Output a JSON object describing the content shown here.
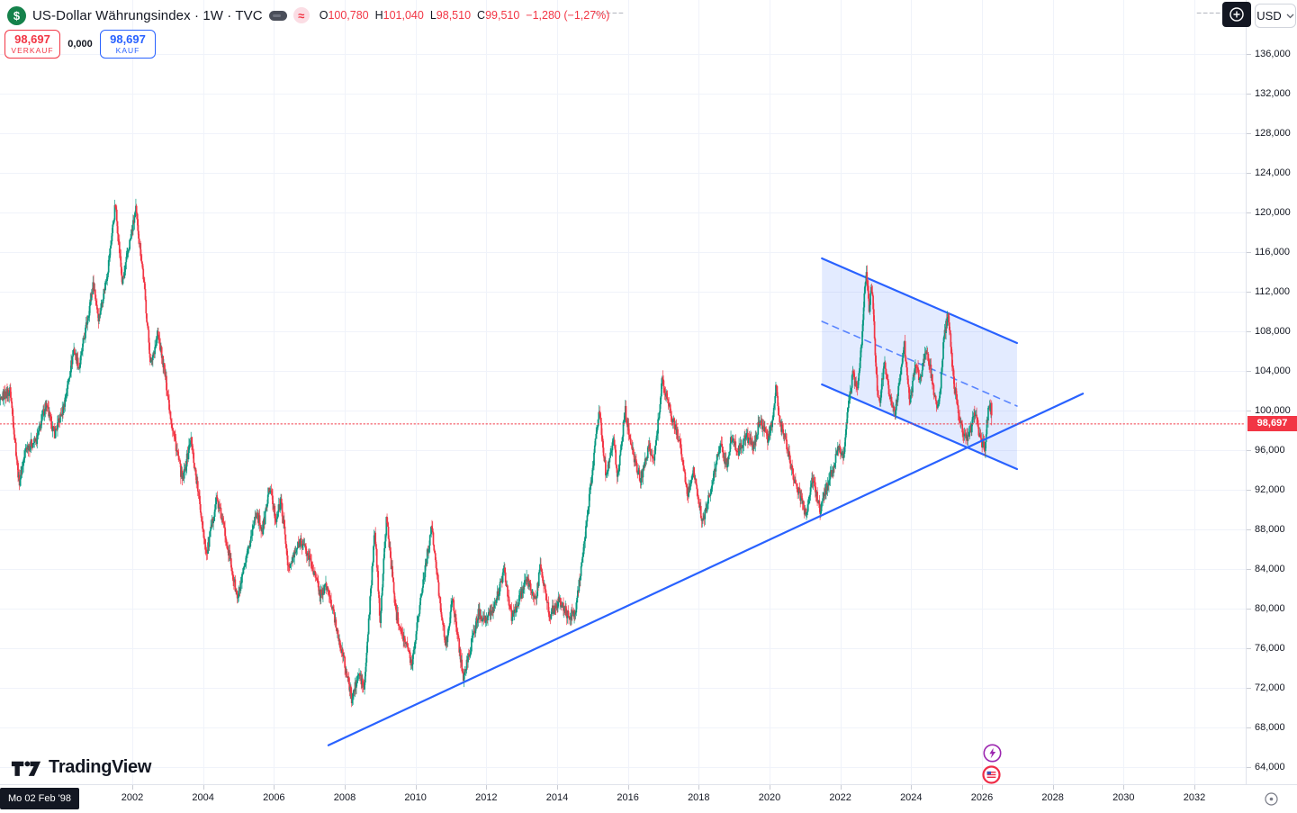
{
  "header": {
    "logo_glyph": "$",
    "symbol_title": "US-Dollar Währungsindex · 1W · TVC",
    "approx_badge": "≈",
    "ohlc": {
      "o_label": "O",
      "o": "100,780",
      "h_label": "H",
      "h": "101,040",
      "l_label": "L",
      "l": "98,510",
      "c_label": "C",
      "c": "99,510",
      "change": "−1,280 (−1,27%)"
    },
    "sell": {
      "price": "98,697",
      "label": "VERKAUF"
    },
    "spread": "0,000",
    "buy": {
      "price": "98,697",
      "label": "KAUF"
    },
    "currency": "USD"
  },
  "footer": {
    "logo_text": "TradingView",
    "date_chip": "Mo 02 Feb '98"
  },
  "chart_data": {
    "type": "candlestick",
    "title": "US-Dollar Währungsindex",
    "timeframe": "1W",
    "exchange": "TVC",
    "last_candle": {
      "open": 100.78,
      "high": 101.04,
      "low": 98.51,
      "close": 99.51,
      "change": -1.28,
      "change_pct": -1.27
    },
    "current_price": 98.697,
    "last_price_label": "98,697",
    "colors": {
      "up": "#089981",
      "down": "#f23645",
      "trend": "#2962ff",
      "channel_fill": "rgba(41,98,255,0.13)",
      "grid": "#f0f3fa",
      "price_line": "#f23645"
    },
    "y_axis": {
      "min": 62.3,
      "max": 141.4,
      "ticks": [
        {
          "value": 136,
          "label": "136,000"
        },
        {
          "value": 132,
          "label": "132,000"
        },
        {
          "value": 128,
          "label": "128,000"
        },
        {
          "value": 124,
          "label": "124,000"
        },
        {
          "value": 120,
          "label": "120,000"
        },
        {
          "value": 116,
          "label": "116,000"
        },
        {
          "value": 112,
          "label": "112,000"
        },
        {
          "value": 108,
          "label": "108,000"
        },
        {
          "value": 104,
          "label": "104,000"
        },
        {
          "value": 100,
          "label": "100,000"
        },
        {
          "value": 96,
          "label": "96,000"
        },
        {
          "value": 92,
          "label": "92,000"
        },
        {
          "value": 88,
          "label": "88,000"
        },
        {
          "value": 84,
          "label": "84,000"
        },
        {
          "value": 80,
          "label": "80,000"
        },
        {
          "value": 76,
          "label": "76,000"
        },
        {
          "value": 72,
          "label": "72,000"
        },
        {
          "value": 68,
          "label": "68,000"
        },
        {
          "value": 64,
          "label": "64,000"
        }
      ]
    },
    "x_axis": {
      "start": 1998.1,
      "end": 2026.28,
      "ticks": [
        {
          "value": 2002,
          "label": "2002"
        },
        {
          "value": 2004,
          "label": "2004"
        },
        {
          "value": 2006,
          "label": "2006"
        },
        {
          "value": 2008,
          "label": "2008"
        },
        {
          "value": 2010,
          "label": "2010"
        },
        {
          "value": 2012,
          "label": "2012"
        },
        {
          "value": 2014,
          "label": "2014"
        },
        {
          "value": 2016,
          "label": "2016"
        },
        {
          "value": 2018,
          "label": "2018"
        },
        {
          "value": 2020,
          "label": "2020"
        },
        {
          "value": 2022,
          "label": "2022"
        },
        {
          "value": 2024,
          "label": "2024"
        },
        {
          "value": 2026,
          "label": "2026"
        },
        {
          "value": 2028,
          "label": "2028"
        },
        {
          "value": 2030,
          "label": "2030"
        },
        {
          "value": 2032,
          "label": "2032"
        }
      ]
    },
    "anchors": [
      [
        1998.1,
        99.5
      ],
      [
        1998.35,
        101.5
      ],
      [
        1998.55,
        102.0
      ],
      [
        1998.7,
        96.5
      ],
      [
        1998.8,
        92.7
      ],
      [
        1999.0,
        96.3
      ],
      [
        1999.3,
        97.0
      ],
      [
        1999.55,
        100.7
      ],
      [
        1999.8,
        97.6
      ],
      [
        2000.05,
        100.2
      ],
      [
        2000.35,
        106.2
      ],
      [
        2000.5,
        104.3
      ],
      [
        2000.9,
        112.8
      ],
      [
        2001.05,
        109.3
      ],
      [
        2001.3,
        114.0
      ],
      [
        2001.52,
        120.8
      ],
      [
        2001.72,
        112.8
      ],
      [
        2001.9,
        116.5
      ],
      [
        2002.1,
        120.2
      ],
      [
        2002.3,
        114.0
      ],
      [
        2002.52,
        104.6
      ],
      [
        2002.72,
        107.8
      ],
      [
        2002.9,
        104.2
      ],
      [
        2003.1,
        99.0
      ],
      [
        2003.42,
        92.8
      ],
      [
        2003.65,
        97.2
      ],
      [
        2003.85,
        92.0
      ],
      [
        2004.1,
        85.4
      ],
      [
        2004.38,
        91.2
      ],
      [
        2004.6,
        88.0
      ],
      [
        2004.97,
        80.9
      ],
      [
        2005.2,
        84.6
      ],
      [
        2005.5,
        89.8
      ],
      [
        2005.68,
        87.8
      ],
      [
        2005.88,
        92.4
      ],
      [
        2006.05,
        89.0
      ],
      [
        2006.2,
        90.8
      ],
      [
        2006.42,
        83.9
      ],
      [
        2006.75,
        87.0
      ],
      [
        2007.05,
        84.7
      ],
      [
        2007.3,
        81.5
      ],
      [
        2007.5,
        82.3
      ],
      [
        2007.95,
        75.2
      ],
      [
        2008.2,
        70.9
      ],
      [
        2008.4,
        73.5
      ],
      [
        2008.55,
        71.8
      ],
      [
        2008.85,
        88.0
      ],
      [
        2009.0,
        78.8
      ],
      [
        2009.18,
        89.2
      ],
      [
        2009.45,
        79.5
      ],
      [
        2009.6,
        78.0
      ],
      [
        2009.9,
        74.4
      ],
      [
        2010.1,
        80.0
      ],
      [
        2010.45,
        88.3
      ],
      [
        2010.65,
        82.0
      ],
      [
        2010.85,
        76.2
      ],
      [
        2011.05,
        81.0
      ],
      [
        2011.35,
        73.0
      ],
      [
        2011.55,
        76.0
      ],
      [
        2011.78,
        79.6
      ],
      [
        2012.0,
        78.8
      ],
      [
        2012.2,
        80.0
      ],
      [
        2012.5,
        83.7
      ],
      [
        2012.72,
        79.0
      ],
      [
        2013.15,
        83.0
      ],
      [
        2013.4,
        80.8
      ],
      [
        2013.53,
        84.5
      ],
      [
        2013.78,
        79.3
      ],
      [
        2014.05,
        80.8
      ],
      [
        2014.35,
        79.1
      ],
      [
        2014.52,
        80.0
      ],
      [
        2014.8,
        87.5
      ],
      [
        2015.18,
        100.2
      ],
      [
        2015.38,
        93.5
      ],
      [
        2015.6,
        97.5
      ],
      [
        2015.7,
        92.9
      ],
      [
        2015.92,
        100.1
      ],
      [
        2016.12,
        95.8
      ],
      [
        2016.35,
        93.0
      ],
      [
        2016.6,
        96.3
      ],
      [
        2016.75,
        95.2
      ],
      [
        2016.97,
        103.2
      ],
      [
        2017.2,
        99.8
      ],
      [
        2017.45,
        97.0
      ],
      [
        2017.68,
        91.4
      ],
      [
        2017.85,
        94.0
      ],
      [
        2018.1,
        88.7
      ],
      [
        2018.35,
        92.0
      ],
      [
        2018.6,
        96.7
      ],
      [
        2018.78,
        94.5
      ],
      [
        2018.92,
        97.3
      ],
      [
        2019.1,
        95.8
      ],
      [
        2019.35,
        97.5
      ],
      [
        2019.55,
        96.2
      ],
      [
        2019.73,
        99.2
      ],
      [
        2019.95,
        97.1
      ],
      [
        2020.1,
        99.0
      ],
      [
        2020.18,
        102.8
      ],
      [
        2020.28,
        98.8
      ],
      [
        2020.45,
        97.0
      ],
      [
        2020.7,
        93.0
      ],
      [
        2020.9,
        91.0
      ],
      [
        2021.02,
        89.5
      ],
      [
        2021.22,
        93.2
      ],
      [
        2021.42,
        89.9
      ],
      [
        2021.65,
        92.8
      ],
      [
        2021.8,
        94.2
      ],
      [
        2021.95,
        96.2
      ],
      [
        2022.08,
        95.2
      ],
      [
        2022.18,
        99.0
      ],
      [
        2022.35,
        103.8
      ],
      [
        2022.48,
        101.9
      ],
      [
        2022.6,
        107.0
      ],
      [
        2022.73,
        114.3
      ],
      [
        2022.82,
        109.8
      ],
      [
        2022.88,
        113.0
      ],
      [
        2023.05,
        101.5
      ],
      [
        2023.12,
        100.9
      ],
      [
        2023.25,
        105.2
      ],
      [
        2023.4,
        101.2
      ],
      [
        2023.55,
        99.9
      ],
      [
        2023.68,
        103.0
      ],
      [
        2023.8,
        107.0
      ],
      [
        2023.97,
        100.8
      ],
      [
        2024.12,
        104.9
      ],
      [
        2024.25,
        102.8
      ],
      [
        2024.4,
        106.2
      ],
      [
        2024.55,
        104.0
      ],
      [
        2024.68,
        100.9
      ],
      [
        2024.78,
        100.3
      ],
      [
        2024.92,
        107.0
      ],
      [
        2025.04,
        109.9
      ],
      [
        2025.2,
        103.0
      ],
      [
        2025.35,
        99.5
      ],
      [
        2025.55,
        96.9
      ],
      [
        2025.7,
        98.3
      ],
      [
        2025.8,
        100.0
      ],
      [
        2025.95,
        97.0
      ],
      [
        2026.08,
        96.3
      ],
      [
        2026.18,
        100.4
      ],
      [
        2026.28,
        99.5
      ]
    ],
    "overlays": {
      "ascending_trendline": {
        "from": [
          2007.54,
          66.2
        ],
        "to": [
          2028.85,
          101.7
        ]
      },
      "channel": {
        "top_from": [
          2021.48,
          115.36
        ],
        "top_to": [
          2026.99,
          106.82
        ],
        "bottom_from": [
          2021.48,
          102.64
        ],
        "bottom_to": [
          2026.99,
          94.09
        ]
      },
      "top_dashed_marks": [
        {
          "from": [
            2015.04,
            140.2
          ],
          "to": [
            2015.92,
            140.2
          ]
        },
        {
          "from": [
            2032.08,
            140.2
          ],
          "to": [
            2032.74,
            140.2
          ]
        }
      ]
    }
  }
}
